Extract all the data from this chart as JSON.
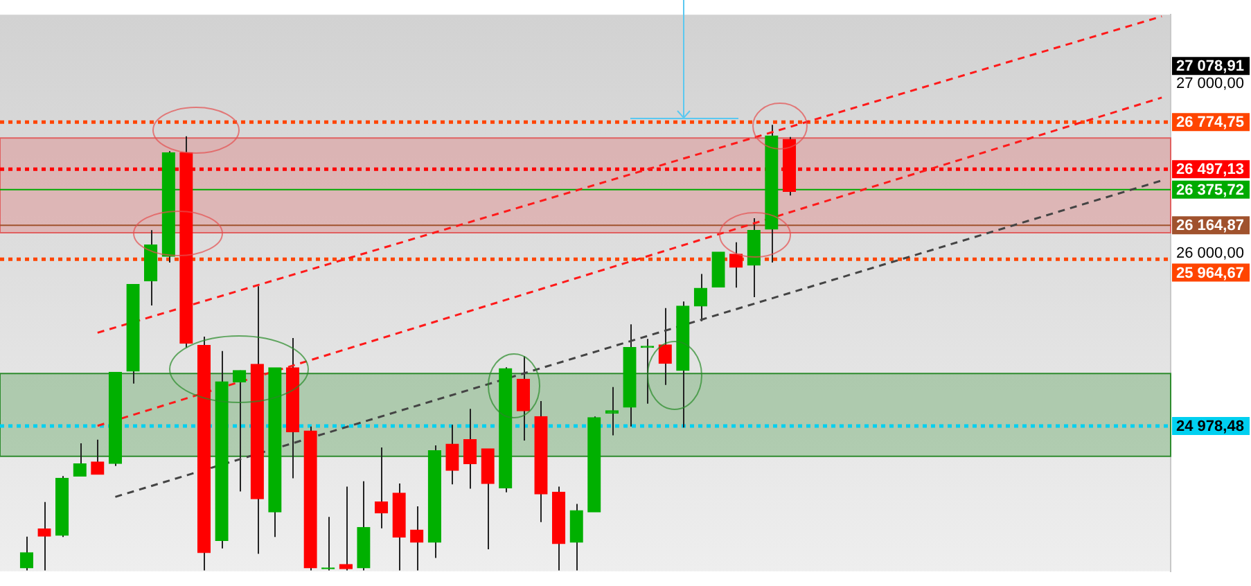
{
  "chart_data": {
    "type": "candlestick",
    "categories": [
      null,
      null,
      null,
      null,
      null,
      null,
      null,
      null,
      null,
      null,
      null,
      null,
      null,
      null,
      null,
      null,
      null,
      null,
      null,
      null,
      null,
      null,
      null,
      null,
      null,
      null,
      null,
      null,
      null,
      null,
      null,
      null,
      null,
      null,
      null,
      null,
      null,
      null,
      null,
      null,
      null,
      null,
      null,
      null,
      null,
      null,
      null,
      null,
      null,
      null,
      null,
      null,
      null,
      null,
      null,
      null,
      null,
      null,
      null,
      null,
      null,
      null,
      null,
      null,
      null,
      null
    ],
    "ohlc": [
      null,
      [
        24140,
        24325,
        24125,
        24230
      ],
      [
        24370,
        24530,
        24125,
        24328
      ],
      [
        24333,
        24683,
        24323,
        24670
      ],
      [
        24683,
        24877,
        24683,
        24755
      ],
      [
        24766,
        24898,
        24693,
        24693
      ],
      [
        24758,
        25297,
        24743,
        25297
      ],
      [
        25303,
        25816,
        25230,
        25816
      ],
      [
        25836,
        26137,
        25691,
        26049
      ],
      [
        25982,
        26603,
        25945,
        26593
      ],
      [
        26593,
        26691,
        25443,
        25468
      ],
      [
        25455,
        25507,
        24125,
        24230
      ],
      [
        24302,
        25422,
        24255,
        25240
      ],
      [
        25240,
        25307,
        24592,
        25307
      ],
      [
        25344,
        25805,
        24224,
        24549
      ],
      [
        24471,
        25323,
        24323,
        25323
      ],
      [
        25323,
        25499,
        24670,
        24945
      ],
      [
        24950,
        24976,
        24125,
        24140
      ],
      [
        24135,
        24442,
        24125,
        24140
      ],
      [
        24160,
        24621,
        24125,
        24135
      ],
      [
        24140,
        24652,
        24125,
        24380
      ],
      [
        24530,
        24852,
        24374,
        24465
      ],
      [
        24582,
        24639,
        24125,
        24323
      ],
      [
        24364,
        24504,
        24125,
        24292
      ],
      [
        24292,
        24864,
        24199,
        24833
      ],
      [
        24872,
        24986,
        24634,
        24717
      ],
      [
        24898,
        25080,
        24608,
        24755
      ],
      [
        24844,
        24844,
        24250,
        24639
      ],
      [
        24613,
        25326,
        24587,
        25318
      ],
      [
        25256,
        25391,
        24893,
        25069
      ],
      [
        25035,
        25126,
        24411,
        24577
      ],
      [
        24587,
        24621,
        24125,
        24284
      ],
      [
        24292,
        24518,
        24125,
        24479
      ],
      [
        24471,
        25035,
        24471,
        25028
      ],
      [
        25054,
        25209,
        24924,
        25069
      ],
      [
        25090,
        25580,
        24976,
        25443
      ],
      [
        25443,
        25494,
        25111,
        25450
      ],
      [
        25458,
        25676,
        25222,
        25349
      ],
      [
        25307,
        25715,
        24970,
        25688
      ],
      [
        25688,
        25878,
        25598,
        25793
      ],
      [
        25800,
        26007,
        25800,
        26007
      ],
      [
        25995,
        26065,
        25797,
        25917
      ],
      [
        25929,
        26207,
        25740,
        26135
      ],
      [
        26142,
        26759,
        25945,
        26694
      ],
      [
        26673,
        26687,
        26341,
        26365
      ],
      null,
      null,
      null,
      null,
      null,
      null,
      null,
      null,
      null,
      null,
      null,
      null,
      null,
      null,
      null,
      null,
      null,
      null,
      null,
      null,
      null
    ],
    "colors": [
      null,
      "#00b000",
      "#ff0000",
      "#00b000",
      "#00b000",
      "#ff0000",
      "#00b000",
      "#00b000",
      "#00b000",
      "#00b000",
      "#ff0000",
      "#ff0000",
      "#00b000",
      "#00b000",
      "#ff0000",
      "#00b000",
      "#ff0000",
      "#ff0000",
      "#00b000",
      "#ff0000",
      "#00b000",
      "#ff0000",
      "#ff0000",
      "#ff0000",
      "#00b000",
      "#ff0000",
      "#ff0000",
      "#ff0000",
      "#00b000",
      "#ff0000",
      "#ff0000",
      "#ff0000",
      "#00b000",
      "#00b000",
      "#00b000",
      "#00b000",
      "#00b000",
      "#ff0000",
      "#00b000",
      "#00b000",
      "#00b000",
      "#ff0000",
      "#00b000",
      "#00b000",
      "#ff0000",
      null,
      null,
      null,
      null,
      null,
      null,
      null,
      null,
      null,
      null,
      null,
      null,
      null,
      null,
      null,
      null,
      null,
      null,
      null,
      null,
      null
    ],
    "ylim": [
      24120,
      27410
    ],
    "yticks": [
      {
        "value": 27000,
        "label": "27 000,00"
      },
      {
        "value": 26000,
        "label": "26 000,00"
      }
    ],
    "tick_labels": "y",
    "grid": false,
    "legend": false,
    "series": [
      {
        "type": "line",
        "values": [
          null,
          null,
          null,
          null,
          null,
          25530,
          null,
          null,
          null,
          null,
          null,
          null,
          null,
          null,
          null,
          null,
          null,
          null,
          null,
          null,
          null,
          null,
          null,
          null,
          null,
          null,
          null,
          null,
          null,
          null,
          null,
          null,
          null,
          null,
          null,
          null,
          null,
          null,
          null,
          null,
          null,
          null,
          null,
          null,
          null,
          null,
          null,
          null,
          null,
          null,
          null,
          null,
          null,
          null,
          null,
          null,
          null,
          null,
          null,
          null,
          null,
          null,
          null,
          null,
          null,
          27400
        ],
        "color": "#ff1a1a",
        "line_style": "dashed"
      },
      {
        "type": "line",
        "values": [
          null,
          null,
          null,
          null,
          null,
          24980,
          null,
          null,
          null,
          null,
          null,
          null,
          null,
          null,
          null,
          null,
          null,
          null,
          null,
          null,
          null,
          null,
          null,
          null,
          null,
          null,
          null,
          null,
          null,
          null,
          null,
          null,
          null,
          null,
          null,
          null,
          null,
          null,
          null,
          null,
          null,
          null,
          null,
          null,
          null,
          null,
          null,
          null,
          null,
          null,
          null,
          null,
          null,
          null,
          null,
          null,
          null,
          null,
          null,
          null,
          null,
          null,
          null,
          null,
          null,
          26920
        ],
        "color": "#ff1a1a",
        "line_style": "dashed"
      },
      {
        "type": "line",
        "values": [
          null,
          null,
          null,
          null,
          null,
          null,
          24560,
          null,
          null,
          null,
          null,
          null,
          null,
          null,
          null,
          null,
          null,
          null,
          null,
          null,
          null,
          null,
          null,
          null,
          null,
          null,
          null,
          null,
          null,
          null,
          null,
          null,
          null,
          null,
          null,
          null,
          null,
          null,
          null,
          null,
          null,
          null,
          null,
          null,
          null,
          null,
          null,
          null,
          null,
          null,
          null,
          null,
          null,
          null,
          null,
          null,
          null,
          null,
          null,
          null,
          null,
          null,
          null,
          null,
          null,
          26430
        ],
        "color": "#444444",
        "line_style": "dashed"
      }
    ],
    "bands": [
      {
        "axis": "y",
        "from": 26121,
        "to": 26681,
        "color": "#e06060"
      },
      {
        "axis": "y",
        "from": 24800,
        "to": 25289,
        "color": "#2e8b2e"
      }
    ],
    "ref_lines": [
      {
        "axis": "y",
        "value": 26774.75,
        "label": "26 774,75",
        "color": "#ff4500",
        "line_style": "dotted"
      },
      {
        "axis": "y",
        "value": 26497.13,
        "label": "26 497,13",
        "color": "#ff0000",
        "line_style": "dotted"
      },
      {
        "axis": "y",
        "value": 26375.72,
        "label": "26 375,72",
        "color": "#00aa00",
        "line_style": "solid"
      },
      {
        "axis": "y",
        "value": 26164.87,
        "label": "26 164,87",
        "color": "#a0522d",
        "line_style": "solid"
      },
      {
        "axis": "y",
        "value": 25964.67,
        "label": "25 964,67",
        "color": "#ff4500",
        "line_style": "dotted"
      },
      {
        "axis": "y",
        "value": 24978.48,
        "label": "24 978,48",
        "color": "#00d0f0",
        "line_style": "dotted"
      }
    ],
    "annotations": [
      "27 078,91"
    ]
  }
}
